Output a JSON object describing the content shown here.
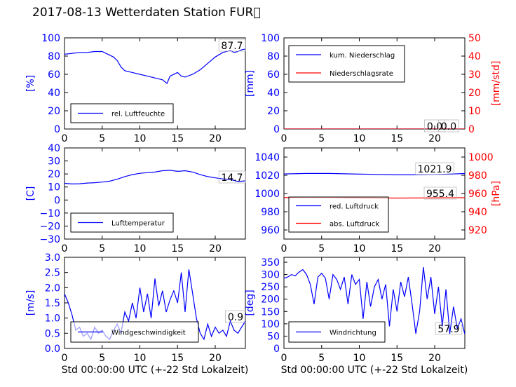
{
  "title": "2017-08-13 Wetterdaten Station FUR\u0000",
  "colors": {
    "primary": "#0000ff",
    "secondary": "#ff0000",
    "axis": "#000000"
  },
  "chart_data": [
    {
      "id": "humidity",
      "type": "line",
      "ylabel": "[%]",
      "ylim": [
        0,
        100
      ],
      "yticks": [
        "0",
        "20",
        "40",
        "60",
        "80",
        "100"
      ],
      "xlim": [
        0,
        24
      ],
      "xticks": [
        "0",
        "5",
        "10",
        "15",
        "20"
      ],
      "legend": {
        "placement": "lower-left",
        "entries": [
          "rel. Luftfeuchte"
        ]
      },
      "annotation": "87.7",
      "series": [
        {
          "name": "rel. Luftfeuchte",
          "color": "#0000ff",
          "x": [
            0,
            1,
            2,
            3,
            4,
            5,
            5.5,
            6,
            6.5,
            7,
            7.5,
            8,
            9,
            10,
            11,
            12,
            13,
            13.6,
            14,
            15,
            15.5,
            16,
            17,
            18,
            19,
            20,
            21,
            22,
            22.5,
            23,
            23.5,
            24
          ],
          "y": [
            82,
            83,
            84,
            84,
            85,
            85,
            83,
            81,
            79,
            75,
            68,
            64,
            62,
            60,
            58,
            56,
            54,
            50,
            58,
            62,
            58,
            57,
            60,
            65,
            72,
            79,
            84,
            86,
            84,
            85,
            87,
            87.7
          ]
        }
      ]
    },
    {
      "id": "precip",
      "type": "line",
      "ylabel": "[mm]",
      "ylim": [
        0,
        100
      ],
      "yticks": [
        "0",
        "20",
        "40",
        "60",
        "80",
        "100"
      ],
      "ylabel2": "[mm/std]",
      "ylim2": [
        0,
        50
      ],
      "yticks2": [
        "0",
        "10",
        "20",
        "30",
        "40",
        "50"
      ],
      "xlim": [
        0,
        24
      ],
      "xticks": [
        "0",
        "5",
        "10",
        "15",
        "20"
      ],
      "legend": {
        "placement": "upper-left",
        "entries": [
          "kum. Niederschlag",
          "Niederschlagsrate"
        ]
      },
      "annotations": [
        "0.0",
        "0.0"
      ],
      "series": [
        {
          "name": "kum. Niederschlag",
          "color": "#0000ff",
          "axis": "left",
          "x": [
            0,
            24
          ],
          "y": [
            0,
            0
          ]
        },
        {
          "name": "Niederschlagsrate",
          "color": "#ff0000",
          "axis": "right",
          "x": [
            0,
            24
          ],
          "y": [
            0,
            0
          ]
        }
      ]
    },
    {
      "id": "temperature",
      "type": "line",
      "ylabel": "[C]",
      "ylim": [
        -30,
        40
      ],
      "yticks": [
        "−30",
        "−20",
        "−10",
        "0",
        "10",
        "20",
        "30",
        "40"
      ],
      "xlim": [
        0,
        24
      ],
      "xticks": [
        "0",
        "5",
        "10",
        "15",
        "20"
      ],
      "legend": {
        "placement": "lower-left",
        "entries": [
          "Lufttemperatur"
        ]
      },
      "annotation": "14.7",
      "series": [
        {
          "name": "Lufttemperatur",
          "color": "#0000ff",
          "x": [
            0,
            1,
            2,
            3,
            4,
            5,
            6,
            7,
            8,
            9,
            10,
            11,
            12,
            13,
            14,
            15,
            16,
            17,
            18,
            19,
            20,
            21,
            22,
            23,
            24
          ],
          "y": [
            12.8,
            12.3,
            12.5,
            13,
            13.3,
            13.8,
            14.5,
            16,
            18,
            19.5,
            20.5,
            21,
            21.5,
            22.5,
            22.8,
            22,
            22.5,
            21.5,
            19.5,
            18,
            17,
            16.2,
            15.8,
            14.2,
            14.7
          ]
        }
      ]
    },
    {
      "id": "pressure",
      "type": "line",
      "ylabel": "",
      "ylim": [
        950,
        1050
      ],
      "yticks": [
        "960",
        "980",
        "1000",
        "1020",
        "1040"
      ],
      "ylabel2": "[hPa]",
      "ylim2": [
        910,
        1010
      ],
      "yticks2": [
        "920",
        "940",
        "960",
        "980",
        "1000"
      ],
      "xlim": [
        0,
        24
      ],
      "xticks": [
        "0",
        "5",
        "10",
        "15",
        "20"
      ],
      "legend": {
        "placement": "lower-left",
        "entries": [
          "red. Luftdruck",
          "abs. Luftdruck"
        ]
      },
      "annotations": [
        "1021.9",
        "955.4"
      ],
      "series": [
        {
          "name": "red. Luftdruck",
          "color": "#0000ff",
          "axis": "left",
          "x": [
            0,
            3,
            6,
            9,
            12,
            15,
            18,
            21,
            24
          ],
          "y": [
            1021.5,
            1022,
            1022,
            1021.5,
            1021,
            1020.5,
            1020.5,
            1021,
            1021.9
          ]
        },
        {
          "name": "abs. Luftdruck",
          "color": "#ff0000",
          "axis": "right",
          "x": [
            0,
            3,
            6,
            9,
            12,
            15,
            18,
            21,
            24
          ],
          "y": [
            955.5,
            955.8,
            955.6,
            955.4,
            955.1,
            955.0,
            955.1,
            955.3,
            955.4
          ]
        }
      ]
    },
    {
      "id": "windspeed",
      "type": "line",
      "ylabel": "[m/s]",
      "ylim": [
        0,
        3
      ],
      "yticks": [
        "0.0",
        "0.5",
        "1.0",
        "1.5",
        "2.0",
        "2.5",
        "3.0"
      ],
      "xlim": [
        0,
        24
      ],
      "xticks": [
        "0",
        "5",
        "10",
        "15",
        "20"
      ],
      "xlabel": "Std 00:00:00 UTC (+-22 Std Lokalzeit)",
      "legend": {
        "placement": "lower-left",
        "entries": [
          "Windgeschwindigkeit"
        ]
      },
      "annotation": "0.9",
      "series": [
        {
          "name": "Windgeschwindigkeit",
          "color": "#0000ff",
          "x": [
            0,
            0.5,
            1,
            1.5,
            2,
            2.5,
            3,
            3.5,
            4,
            4.5,
            5,
            5.5,
            6,
            6.5,
            7,
            7.5,
            8,
            8.5,
            9,
            9.5,
            10,
            10.5,
            11,
            11.5,
            12,
            12.5,
            13,
            13.5,
            14,
            14.5,
            15,
            15.5,
            16,
            16.5,
            17,
            17.5,
            18,
            18.5,
            19,
            19.5,
            20,
            20.5,
            21,
            21.5,
            22,
            22.5,
            23,
            23.5,
            24
          ],
          "y": [
            1.8,
            1.5,
            1.1,
            0.6,
            0.7,
            0.4,
            0.5,
            0.3,
            0.7,
            0.5,
            0.6,
            0.4,
            0.3,
            0.6,
            0.8,
            0.5,
            1.2,
            0.9,
            1.5,
            1.0,
            2.0,
            1.2,
            1.8,
            1.0,
            2.3,
            1.4,
            1.9,
            1.2,
            1.6,
            1.9,
            1.5,
            2.5,
            1.2,
            2.6,
            1.8,
            1.0,
            0.5,
            0.3,
            0.8,
            0.4,
            0.7,
            0.5,
            0.6,
            0.4,
            0.9,
            0.6,
            0.5,
            0.7,
            0.9
          ]
        }
      ]
    },
    {
      "id": "winddir",
      "type": "line",
      "ylabel": "[deg]",
      "ylim": [
        0,
        370
      ],
      "yticks": [
        "0",
        "50",
        "100",
        "150",
        "200",
        "250",
        "300",
        "350"
      ],
      "xlim": [
        0,
        24
      ],
      "xticks": [
        "0",
        "5",
        "10",
        "15",
        "20"
      ],
      "xlabel": "Std 00:00:00 UTC (+-22 Std Lokalzeit)",
      "legend": {
        "placement": "lower-left",
        "entries": [
          "Windrichtung"
        ]
      },
      "annotation": "57.9",
      "series": [
        {
          "name": "Windrichtung",
          "color": "#0000ff",
          "x": [
            0,
            0.5,
            1,
            1.5,
            2,
            2.5,
            3,
            3.5,
            4,
            4.5,
            5,
            5.5,
            6,
            6.5,
            7,
            7.5,
            8,
            8.5,
            9,
            9.5,
            10,
            10.5,
            11,
            11.5,
            12,
            12.5,
            13,
            13.5,
            14,
            14.5,
            15,
            15.5,
            16,
            16.5,
            17,
            17.5,
            18,
            18.5,
            19,
            19.5,
            20,
            20.5,
            21,
            21.5,
            22,
            22.5,
            23,
            23.5,
            24
          ],
          "y": [
            285,
            290,
            300,
            295,
            310,
            320,
            300,
            260,
            180,
            290,
            305,
            285,
            200,
            300,
            280,
            240,
            290,
            180,
            300,
            260,
            280,
            120,
            270,
            170,
            250,
            280,
            200,
            260,
            90,
            240,
            150,
            270,
            210,
            290,
            180,
            60,
            150,
            330,
            200,
            290,
            140,
            250,
            90,
            240,
            60,
            170,
            80,
            120,
            57.9
          ]
        }
      ]
    }
  ]
}
